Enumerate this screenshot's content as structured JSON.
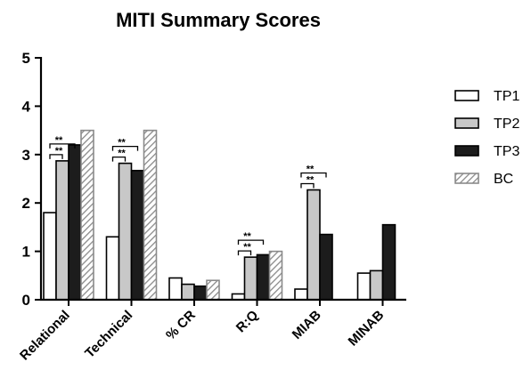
{
  "chart_data": {
    "type": "bar",
    "title": "MITI Summary  Scores",
    "xlabel": "",
    "ylabel": "",
    "ylim": [
      0,
      5
    ],
    "yticks": [
      "0",
      "1",
      "2",
      "3",
      "4",
      "5"
    ],
    "categories": [
      "Relational",
      "Technical",
      "% CR",
      "R:Q",
      "MIAB",
      "MINAB"
    ],
    "series": [
      {
        "name": "TP1",
        "values": [
          1.8,
          1.3,
          0.45,
          0.12,
          0.22,
          0.55
        ],
        "fill": "#ffffff",
        "pattern": "none"
      },
      {
        "name": "TP2",
        "values": [
          2.87,
          2.82,
          0.32,
          0.88,
          2.27,
          0.6
        ],
        "fill": "#c8c8c8",
        "pattern": "none"
      },
      {
        "name": "TP3",
        "values": [
          3.2,
          2.67,
          0.28,
          0.93,
          1.35,
          1.55
        ],
        "fill": "#1c1c1c",
        "pattern": "none"
      },
      {
        "name": "BC",
        "values": [
          3.5,
          3.5,
          0.4,
          1.0,
          null,
          null
        ],
        "fill": "#ffffff",
        "pattern": "hatch"
      }
    ],
    "significance": [
      {
        "category": "Relational",
        "from": "TP1",
        "to": "TP2",
        "label": "**"
      },
      {
        "category": "Relational",
        "from": "TP1",
        "to": "TP3",
        "label": "**"
      },
      {
        "category": "Technical",
        "from": "TP1",
        "to": "TP2",
        "label": "**"
      },
      {
        "category": "Technical",
        "from": "TP1",
        "to": "TP3",
        "label": "**"
      },
      {
        "category": "R:Q",
        "from": "TP1",
        "to": "TP2",
        "label": "**"
      },
      {
        "category": "R:Q",
        "from": "TP1",
        "to": "TP3",
        "label": "**"
      },
      {
        "category": "MIAB",
        "from": "TP1",
        "to": "TP2",
        "label": "**"
      },
      {
        "category": "MIAB",
        "from": "TP1",
        "to": "TP3",
        "label": "**"
      }
    ],
    "legend_position": "right",
    "grid": false
  }
}
